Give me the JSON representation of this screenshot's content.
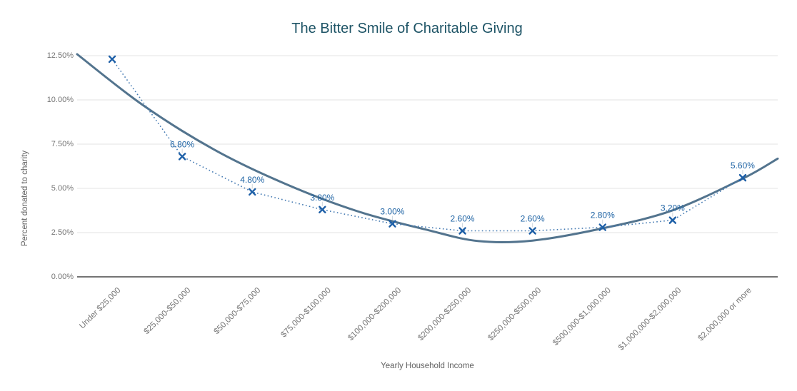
{
  "chart_data": {
    "type": "scatter",
    "title": "The Bitter Smile of Charitable Giving",
    "xlabel": "Yearly Household Income",
    "ylabel": "Percent donated to charity",
    "legend": "none",
    "grid": true,
    "ylim": [
      0,
      12.5
    ],
    "categories": [
      "Under $25,000",
      "$25,000-$50,000",
      "$50,000-$75,000",
      "$75,000-$100,000",
      "$100,000-$200,000",
      "$200,000-$250,000",
      "$250,000-$500,000",
      "$500,000-$1,000,000",
      "$1,000,000-$2,000,000",
      "$2,000,000 or more"
    ],
    "values": [
      12.3,
      6.8,
      4.8,
      3.8,
      3.0,
      2.6,
      2.6,
      2.8,
      3.2,
      5.6
    ],
    "point_labels": [
      "",
      "6.80%",
      "4.80%",
      "3.80%",
      "3.00%",
      "2.60%",
      "2.60%",
      "2.80%",
      "3.20%",
      "5.60%"
    ],
    "y_ticks": [
      {
        "value": 12.5,
        "label": "12.50%"
      },
      {
        "value": 10.0,
        "label": "10.00%"
      },
      {
        "value": 7.5,
        "label": "7.50%"
      },
      {
        "value": 5.0,
        "label": "5.00%"
      },
      {
        "value": 2.5,
        "label": "2.50%"
      },
      {
        "value": 0.0,
        "label": "0.00%"
      }
    ],
    "trendline": {
      "type": "polynomial-fit",
      "points": [
        {
          "x": -0.5,
          "v": 12.58
        },
        {
          "x": 0.44,
          "v": 9.7
        },
        {
          "x": 1.46,
          "v": 7.18
        },
        {
          "x": 2.48,
          "v": 5.24
        },
        {
          "x": 3.5,
          "v": 3.71
        },
        {
          "x": 4.52,
          "v": 2.63
        },
        {
          "x": 5.23,
          "v": 2.02
        },
        {
          "x": 6.0,
          "v": 2.05
        },
        {
          "x": 7.0,
          "v": 2.74
        },
        {
          "x": 8.0,
          "v": 3.76
        },
        {
          "x": 9.0,
          "v": 5.55
        },
        {
          "x": 9.5,
          "v": 6.68
        }
      ]
    },
    "colors": {
      "title": "#1e5466",
      "axis_text": "#757575",
      "gridline": "#e3e3e3",
      "zero_line": "#212121",
      "series_marker": "#1d5fa7",
      "series_dots": "#4379b2",
      "data_label": "#1e63a4",
      "trendline": "#53748e",
      "leader_line": "#ccd6de"
    }
  }
}
